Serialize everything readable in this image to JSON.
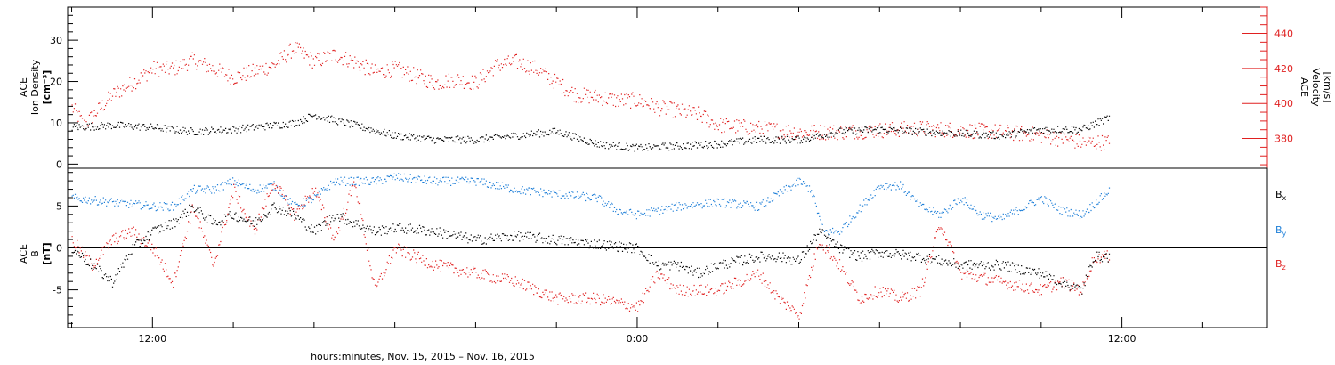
{
  "xlabel": "hours:minutes, Nov. 15, 2015 – Nov. 16, 2015",
  "x_tick_labels": [
    "12:00",
    "0:00",
    "12:00"
  ],
  "panel_top": {
    "left_label": [
      "ACE",
      "Ion Density",
      "[cm⁻³]"
    ],
    "right_label": [
      "ACE",
      "Velocity",
      "[km/s]"
    ],
    "left_ticks": [
      "0",
      "10",
      "20",
      "30"
    ],
    "right_ticks": [
      "380",
      "400",
      "420",
      "440"
    ]
  },
  "panel_bottom": {
    "left_label": [
      "ACE",
      "B",
      "[nT]"
    ],
    "left_ticks": [
      "-5",
      "0",
      "5"
    ],
    "legend": [
      {
        "text": "Bx",
        "color": "#000000"
      },
      {
        "text": "By",
        "color": "#1e7fd8"
      },
      {
        "text": "Bz",
        "color": "#e02020"
      }
    ]
  },
  "colors": {
    "density": "#000000",
    "velocity": "#e02020",
    "bx": "#000000",
    "by": "#1e7fd8",
    "bz": "#e02020"
  },
  "chart_data": [
    {
      "type": "scatter",
      "xlabel": "hours:minutes, Nov. 15, 2015 – Nov. 16, 2015",
      "x_unit": "hours since 2015-11-15 00:00",
      "xlim": [
        9.9,
        39.6
      ],
      "ylabel": "ACE Ion Density [cm⁻³]",
      "ylim": [
        -1,
        38
      ],
      "y2label": "ACE Velocity [km/s]",
      "y2lim": [
        363,
        455
      ],
      "series": [
        {
          "name": "Ion Density",
          "axis": "left",
          "x": [
            10,
            11,
            12,
            13,
            14,
            15,
            15.5,
            16,
            17,
            18,
            19,
            20,
            21,
            22,
            22.5,
            23,
            24,
            25,
            26,
            27,
            28,
            29,
            30,
            31,
            32,
            33,
            34,
            35,
            35.7
          ],
          "y": [
            9,
            9.5,
            9,
            8,
            8.5,
            9.5,
            10,
            12,
            9.5,
            7,
            6,
            6,
            7,
            8,
            6.5,
            5,
            4,
            4.5,
            5,
            6,
            6,
            8,
            8.5,
            8,
            7.5,
            7,
            8.5,
            8.5,
            11.5
          ]
        },
        {
          "name": "Velocity",
          "axis": "right",
          "x": [
            10,
            10.3,
            11,
            11.7,
            12,
            12.5,
            13,
            14,
            15,
            15.5,
            16,
            16.5,
            17,
            17.5,
            18,
            18.5,
            19,
            19.5,
            20,
            20.5,
            21,
            21.5,
            22,
            22.5,
            23,
            23.5,
            24,
            24.5,
            25,
            25.5,
            26,
            27,
            28,
            29,
            30,
            31,
            32,
            33,
            34,
            35,
            35.7
          ],
          "y": [
            398,
            388,
            405,
            415,
            420,
            420,
            425,
            415,
            422,
            432,
            424,
            428,
            424,
            418,
            420,
            416,
            412,
            414,
            412,
            422,
            424,
            420,
            412,
            405,
            404,
            402,
            402,
            398,
            396,
            394,
            388,
            386,
            384,
            384,
            385,
            386,
            385,
            384,
            382,
            378,
            378
          ]
        }
      ]
    },
    {
      "type": "scatter",
      "xlabel": "hours:minutes, Nov. 15, 2015 – Nov. 16, 2015",
      "x_unit": "hours since 2015-11-15 00:00",
      "xlim": [
        9.9,
        39.6
      ],
      "ylabel": "ACE B [nT]",
      "ylim": [
        -9.5,
        9.5
      ],
      "series": [
        {
          "name": "Bx",
          "x": [
            10,
            10.5,
            11,
            11.5,
            12,
            12.5,
            13,
            13.5,
            14,
            14.5,
            15,
            15.5,
            16,
            16.5,
            17,
            17.5,
            18,
            19,
            20,
            21,
            22,
            23,
            24,
            24.5,
            25,
            25.5,
            26,
            27,
            27.5,
            28,
            28.5,
            29,
            29.5,
            30,
            31,
            32,
            33,
            34,
            34.5,
            35,
            35.3,
            35.7
          ],
          "y": [
            0,
            -2,
            -4,
            0,
            2,
            3,
            5,
            3,
            4,
            3,
            5,
            4,
            2,
            4,
            3,
            2,
            2.5,
            2,
            1,
            1.5,
            1,
            0.5,
            0,
            -2,
            -2,
            -3,
            -2,
            -1,
            -1,
            -1.5,
            2,
            0,
            -1,
            -0.5,
            -1,
            -2,
            -2,
            -3,
            -4,
            -5,
            -1,
            -1
          ]
        },
        {
          "name": "By",
          "x": [
            10,
            11,
            12,
            12.5,
            13,
            13.5,
            14,
            14.5,
            15,
            15.5,
            16,
            16.5,
            17,
            17.5,
            18,
            19,
            20,
            21,
            22,
            23,
            23.5,
            24,
            25,
            26,
            27,
            28,
            28.3,
            28.6,
            29,
            30,
            30.5,
            31,
            31.5,
            32,
            32.5,
            33,
            34,
            34.5,
            35,
            35.7
          ],
          "y": [
            6,
            5.5,
            5,
            5,
            7,
            7,
            8,
            7,
            7.5,
            5,
            6,
            8,
            8,
            8,
            8.5,
            8,
            8,
            7,
            6.5,
            6,
            4.5,
            4,
            5,
            5.5,
            5,
            8,
            7,
            2,
            2,
            7.5,
            7.5,
            5,
            4,
            6,
            4,
            3.5,
            6,
            4.5,
            4,
            7
          ]
        },
        {
          "name": "Bz",
          "x": [
            10,
            10.5,
            11,
            11.5,
            12,
            12.5,
            13,
            13.5,
            14,
            14.5,
            15,
            15.5,
            16,
            16.5,
            17,
            17.5,
            18,
            19,
            20,
            21,
            22,
            23,
            24,
            24.5,
            25,
            25.5,
            26,
            27,
            27.5,
            28,
            28.5,
            29,
            29.5,
            30,
            30.5,
            31,
            31.5,
            32,
            33,
            34,
            34.5,
            35,
            35.3,
            35.7
          ],
          "y": [
            1,
            -2,
            1,
            2,
            0,
            -4,
            5,
            -2,
            7,
            2,
            8,
            4,
            7,
            1,
            8,
            -5,
            0,
            -2,
            -3,
            -4,
            -6,
            -6,
            -7,
            -3,
            -5,
            -5,
            -5,
            -3,
            -6,
            -8,
            1,
            -2,
            -6,
            -5,
            -6,
            -5,
            3,
            -3,
            -4,
            -5,
            -4,
            -5,
            -1,
            -1
          ]
        }
      ]
    }
  ]
}
